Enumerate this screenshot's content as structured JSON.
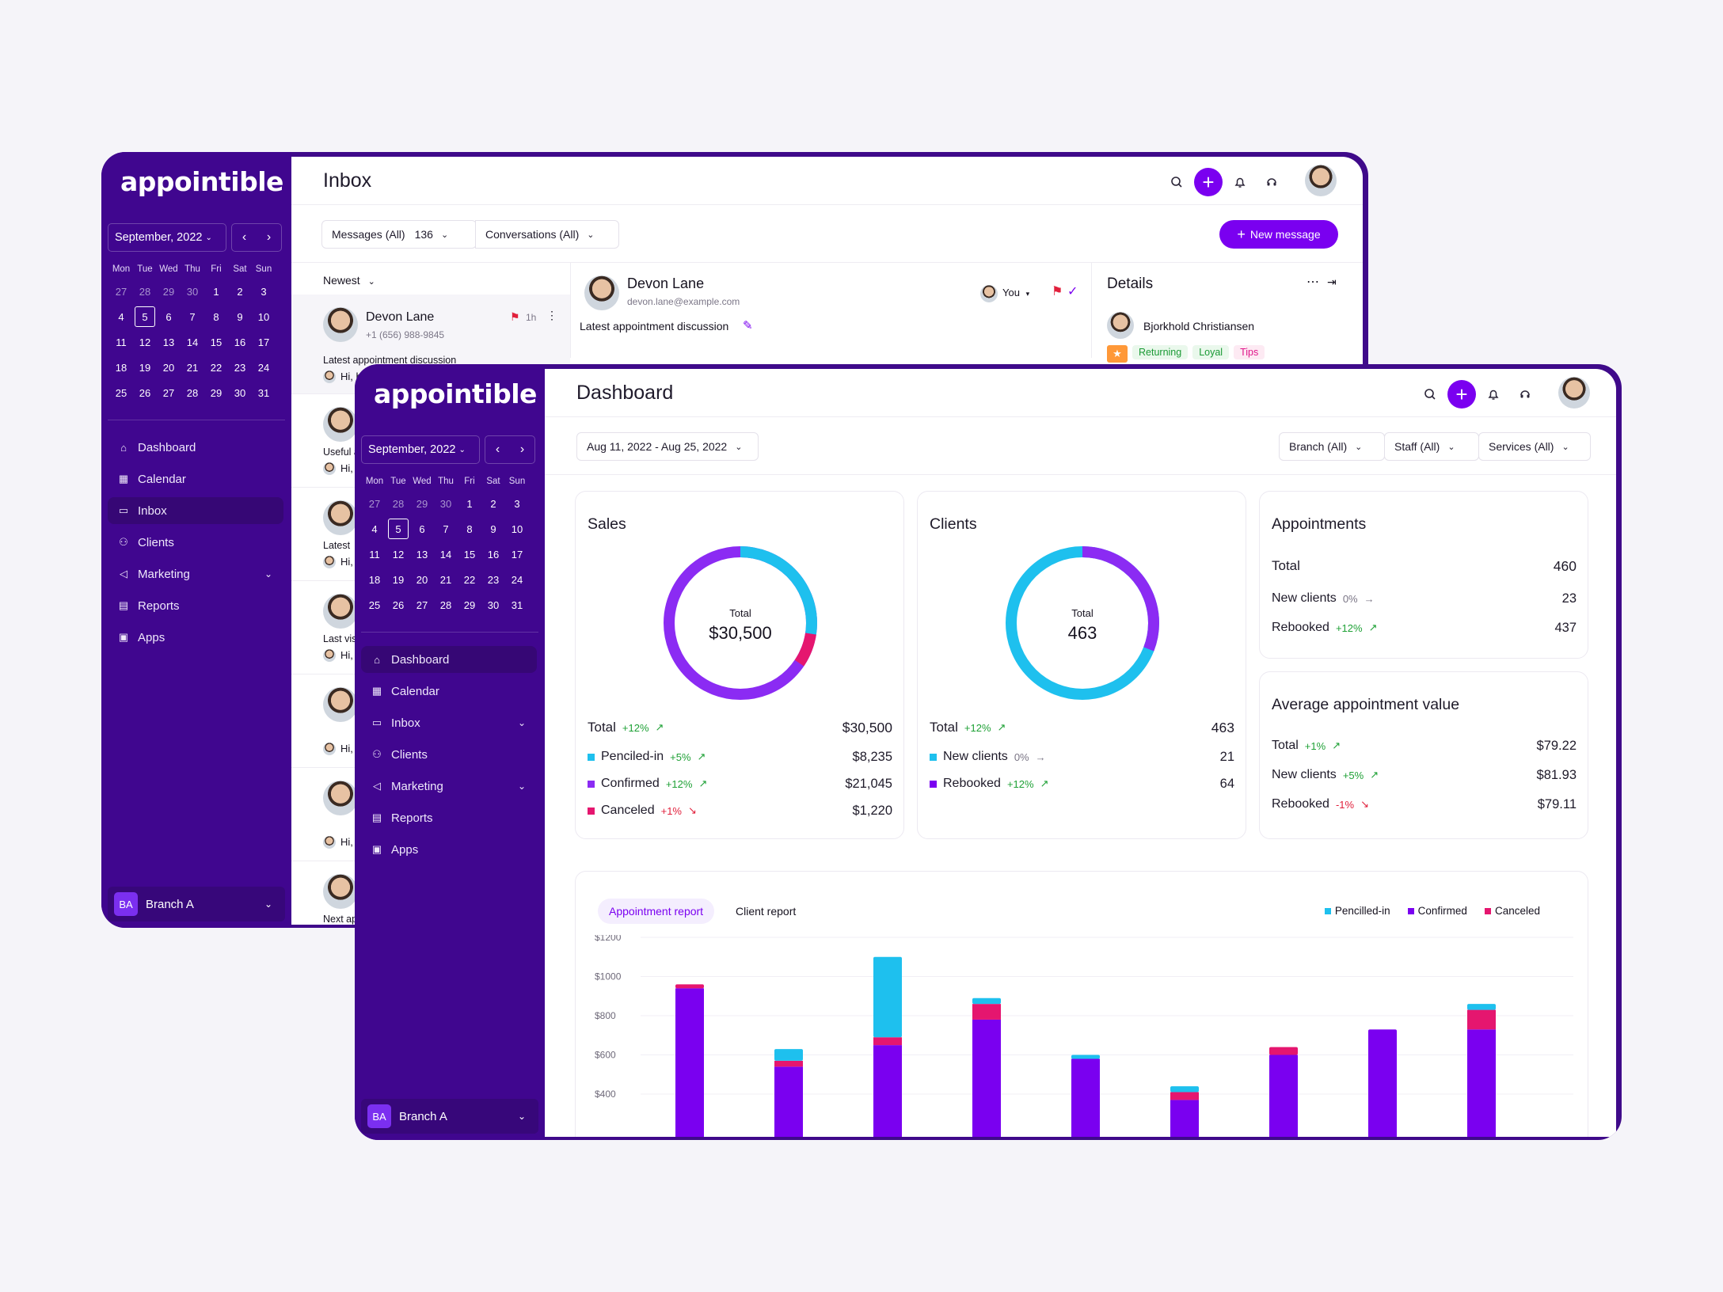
{
  "inbox_window": {
    "logo": "appointible",
    "calendar": {
      "month_label": "September, 2022",
      "weekdays": [
        "Mon",
        "Tue",
        "Wed",
        "Thu",
        "Fri",
        "Sat",
        "Sun"
      ],
      "weeks": [
        [
          "27",
          "28",
          "29",
          "30",
          "1",
          "2",
          "3"
        ],
        [
          "4",
          "5",
          "6",
          "7",
          "8",
          "9",
          "10"
        ],
        [
          "11",
          "12",
          "13",
          "14",
          "15",
          "16",
          "17"
        ],
        [
          "18",
          "19",
          "20",
          "21",
          "22",
          "23",
          "24"
        ],
        [
          "25",
          "26",
          "27",
          "28",
          "29",
          "30",
          "31"
        ]
      ],
      "selected_day": "5"
    },
    "nav": [
      {
        "label": "Dashboard",
        "icon": "home-icon"
      },
      {
        "label": "Calendar",
        "icon": "calendar-icon"
      },
      {
        "label": "Inbox",
        "icon": "chat-icon",
        "active": true
      },
      {
        "label": "Clients",
        "icon": "users-icon"
      },
      {
        "label": "Marketing",
        "icon": "megaphone-icon",
        "has_chevron": true
      },
      {
        "label": "Reports",
        "icon": "report-icon"
      },
      {
        "label": "Apps",
        "icon": "apps-icon"
      }
    ],
    "branch": {
      "badge": "BA",
      "label": "Branch A"
    },
    "title": "Inbox",
    "filters": {
      "messages_label": "Messages (All)",
      "messages_count": "136",
      "conversations_label": "Conversations (All)"
    },
    "new_message_label": "New message",
    "sort_label": "Newest",
    "first_message": {
      "name": "Devon Lane",
      "phone": "+1 (656) 988-9845",
      "time": "1h",
      "subject": "Latest appointment discussion",
      "preview": "Hi, h"
    },
    "other_messages": [
      {
        "subject": "Useful a",
        "preview": "Hi,"
      },
      {
        "subject": "Latest",
        "preview": "Hi,"
      },
      {
        "subject": "Last vis",
        "preview": "Hi,"
      },
      {
        "subject": "",
        "preview": "Hi,"
      },
      {
        "subject": "",
        "preview": "Hi,"
      },
      {
        "subject": "Next ap",
        "preview": ""
      }
    ],
    "conversation": {
      "name": "Devon Lane",
      "email": "devon.lane@example.com",
      "assignee": "You",
      "subject": "Latest appointment discussion"
    },
    "details": {
      "title": "Details",
      "person": "Bjorkhold Christiansen",
      "tags": [
        "Returning",
        "Loyal",
        "Tips"
      ]
    }
  },
  "dashboard_window": {
    "logo": "appointible",
    "calendar": {
      "month_label": "September, 2022",
      "weekdays": [
        "Mon",
        "Tue",
        "Wed",
        "Thu",
        "Fri",
        "Sat",
        "Sun"
      ],
      "weeks": [
        [
          "27",
          "28",
          "29",
          "30",
          "1",
          "2",
          "3"
        ],
        [
          "4",
          "5",
          "6",
          "7",
          "8",
          "9",
          "10"
        ],
        [
          "11",
          "12",
          "13",
          "14",
          "15",
          "16",
          "17"
        ],
        [
          "18",
          "19",
          "20",
          "21",
          "22",
          "23",
          "24"
        ],
        [
          "25",
          "26",
          "27",
          "28",
          "29",
          "30",
          "31"
        ]
      ],
      "selected_day": "5"
    },
    "nav": [
      {
        "label": "Dashboard",
        "icon": "home-icon",
        "active": true
      },
      {
        "label": "Calendar",
        "icon": "calendar-icon"
      },
      {
        "label": "Inbox",
        "icon": "chat-icon",
        "has_chevron": true
      },
      {
        "label": "Clients",
        "icon": "users-icon"
      },
      {
        "label": "Marketing",
        "icon": "megaphone-icon",
        "has_chevron": true
      },
      {
        "label": "Reports",
        "icon": "report-icon"
      },
      {
        "label": "Apps",
        "icon": "apps-icon"
      }
    ],
    "branch": {
      "badge": "BA",
      "label": "Branch A"
    },
    "title": "Dashboard",
    "date_range": "Aug 11, 2022 - Aug 25, 2022",
    "filters": [
      "Branch (All)",
      "Staff (All)",
      "Services (All)"
    ],
    "sales": {
      "title": "Sales",
      "center_label": "Total",
      "center_value": "$30,500",
      "total_label": "Total",
      "total_change": "+12%",
      "total_value": "$30,500",
      "rows": [
        {
          "label": "Penciled-in",
          "change": "+5%",
          "trend": "up",
          "value": "$8,235",
          "color": "#1ec0ee"
        },
        {
          "label": "Confirmed",
          "change": "+12%",
          "trend": "up",
          "value": "$21,045",
          "color": "#8b2bf3"
        },
        {
          "label": "Canceled",
          "change": "+1%",
          "trend": "down",
          "value": "$1,220",
          "color": "#e5166f"
        }
      ]
    },
    "clients": {
      "title": "Clients",
      "center_label": "Total",
      "center_value": "463",
      "total_label": "Total",
      "total_change": "+12%",
      "total_value": "463",
      "rows": [
        {
          "label": "New clients",
          "change": "0%",
          "trend": "flat",
          "value": "21",
          "color": "#1ec0ee"
        },
        {
          "label": "Rebooked",
          "change": "+12%",
          "trend": "up",
          "value": "64",
          "color": "#7a00f0"
        }
      ]
    },
    "appointments": {
      "title": "Appointments",
      "total_label": "Total",
      "total_value": "460",
      "rows": [
        {
          "label": "New clients",
          "change": "0%",
          "trend": "flat",
          "value": "23"
        },
        {
          "label": "Rebooked",
          "change": "+12%",
          "trend": "up",
          "value": "437"
        }
      ]
    },
    "avg_value": {
      "title": "Average appointment value",
      "rows": [
        {
          "label": "Total",
          "change": "+1%",
          "trend": "up",
          "value": "$79.22"
        },
        {
          "label": "New clients",
          "change": "+5%",
          "trend": "up",
          "value": "$81.93"
        },
        {
          "label": "Rebooked",
          "change": "-1%",
          "trend": "down",
          "value": "$79.11"
        }
      ]
    },
    "report_tabs": [
      "Appointment report",
      "Client report"
    ],
    "colors": {
      "penciled": "#1ec0ee",
      "confirmed": "#7a00f0",
      "canceled": "#e5166f",
      "accent": "#7a00f0",
      "sidebar": "#40068f"
    }
  },
  "chart_data": {
    "type": "bar",
    "stacked": true,
    "series": [
      {
        "name": "Confirmed",
        "color": "#7a00f0",
        "values": [
          940,
          540,
          650,
          780,
          580,
          370,
          600,
          730,
          730
        ]
      },
      {
        "name": "Canceled",
        "color": "#e5166f",
        "values": [
          20,
          30,
          40,
          80,
          0,
          40,
          40,
          0,
          100
        ]
      },
      {
        "name": "Pencilled-in",
        "color": "#1ec0ee",
        "values": [
          0,
          60,
          410,
          30,
          20,
          30,
          0,
          0,
          30
        ]
      }
    ],
    "yticks": [
      "$1200",
      "$1000",
      "$800",
      "$600",
      "$400"
    ],
    "ylim": [
      0,
      1200
    ],
    "legend": [
      "Pencilled-in",
      "Confirmed",
      "Canceled"
    ],
    "legend_position": "top-right"
  }
}
